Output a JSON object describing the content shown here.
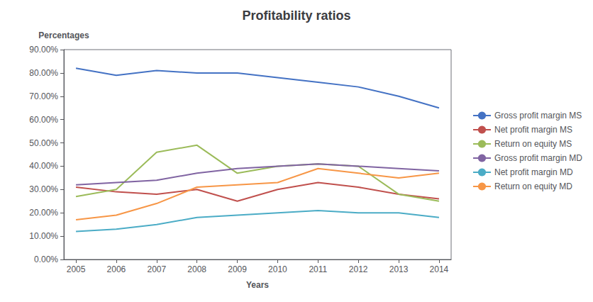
{
  "chart_data": {
    "type": "line",
    "title": "Profitability ratios",
    "xlabel": "Years",
    "ylabel": "Percentages",
    "x": [
      2005,
      2006,
      2007,
      2008,
      2009,
      2010,
      2011,
      2012,
      2013,
      2014
    ],
    "series": [
      {
        "name": "Gross profit margin MS",
        "color": "#4472C4",
        "values": [
          0.82,
          0.79,
          0.81,
          0.8,
          0.8,
          0.78,
          0.76,
          0.74,
          0.7,
          0.65
        ]
      },
      {
        "name": "Net profit margin MS",
        "color": "#C0504D",
        "values": [
          0.31,
          0.29,
          0.28,
          0.3,
          0.25,
          0.3,
          0.33,
          0.31,
          0.28,
          0.26
        ]
      },
      {
        "name": "Return on equity MS",
        "color": "#9BBB59",
        "values": [
          0.27,
          0.3,
          0.46,
          0.49,
          0.37,
          0.4,
          0.41,
          0.4,
          0.28,
          0.25
        ]
      },
      {
        "name": "Gross profit margin MD",
        "color": "#8064A2",
        "values": [
          0.32,
          0.33,
          0.34,
          0.37,
          0.39,
          0.4,
          0.41,
          0.4,
          0.39,
          0.38
        ]
      },
      {
        "name": "Net profit margin MD",
        "color": "#4BACC6",
        "values": [
          0.12,
          0.13,
          0.15,
          0.18,
          0.19,
          0.2,
          0.21,
          0.2,
          0.2,
          0.18
        ]
      },
      {
        "name": "Return on equity MD",
        "color": "#F79646",
        "values": [
          0.17,
          0.19,
          0.24,
          0.31,
          0.32,
          0.33,
          0.39,
          0.37,
          0.35,
          0.37
        ]
      }
    ],
    "xlim": [
      2004.7,
      2014.3
    ],
    "xticks": [
      2005,
      2006,
      2007,
      2008,
      2009,
      2010,
      2011,
      2012,
      2013,
      2014
    ],
    "ylim": [
      0.0,
      0.9
    ],
    "yticks": [
      {
        "value": 0.0,
        "label": "0.00%"
      },
      {
        "value": 0.1,
        "label": "10.00%"
      },
      {
        "value": 0.2,
        "label": "20.00%"
      },
      {
        "value": 0.3,
        "label": "30.00%"
      },
      {
        "value": 0.4,
        "label": "40.00%"
      },
      {
        "value": 0.5,
        "label": "50.00%"
      },
      {
        "value": 0.6,
        "label": "60.00%"
      },
      {
        "value": 0.7,
        "label": "70.00%"
      },
      {
        "value": 0.8,
        "label": "80.00%"
      },
      {
        "value": 0.9,
        "label": "90.00%"
      }
    ],
    "grid": false,
    "legend": "right"
  }
}
